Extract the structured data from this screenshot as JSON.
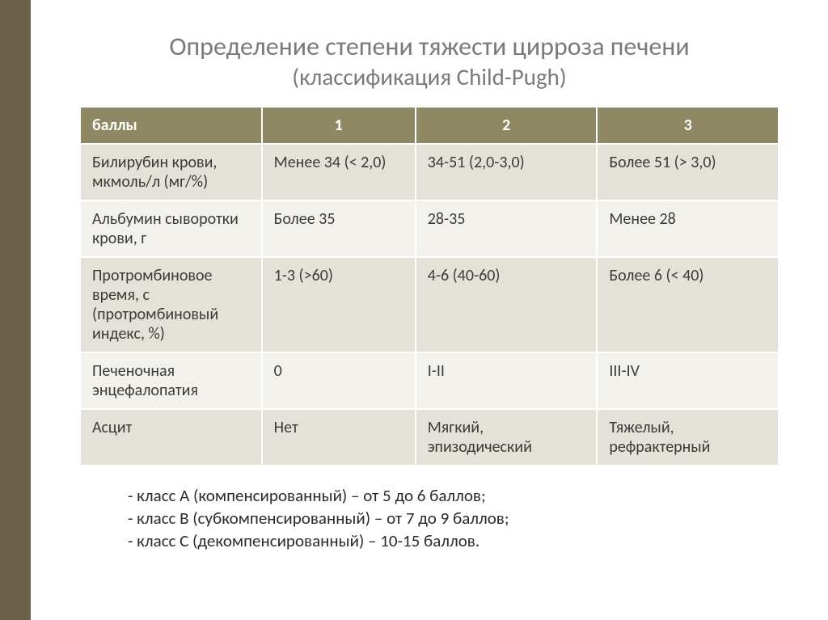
{
  "title": {
    "main": "Определение степени тяжести цирроза печени",
    "sub": "(классификация Child-Pugh)"
  },
  "table": {
    "header_bg": "#8f8865",
    "header_fg": "#ffffff",
    "row_odd_bg": "#e4e2d8",
    "row_even_bg": "#f2f1ec",
    "cell_fg": "#3b3b3b",
    "border_color": "#ffffff",
    "columns": [
      "баллы",
      "1",
      "2",
      "3"
    ],
    "rows": [
      [
        "Билирубин крови, мкмоль/л (мг/%)",
        "Менее 34 (< 2,0)",
        "34-51 (2,0-3,0)",
        "Более 51 (> 3,0)"
      ],
      [
        "Альбумин сыворотки крови, г",
        "Более 35",
        "28-35",
        "Менее 28"
      ],
      [
        "Протромбиновое время, с (протромбиновый индекс, %)",
        "1-3 (>60)",
        "4-6 (40-60)",
        "Более 6 (< 40)"
      ],
      [
        "Печеночная энцефалопатия",
        "0",
        "I-II",
        "III-IV"
      ],
      [
        "Асцит",
        "Нет",
        "Мягкий, эпизодический",
        "Тяжелый, рефрактерный"
      ]
    ]
  },
  "notes": [
    "- класс А (компенсированный) – от 5 до 6 баллов;",
    "- класс В (субкомпенсированный) – от 7 до 9 баллов;",
    "- класс С (декомпенсированный) – 10-15 баллов."
  ],
  "accent_bar_color": "#6b614b",
  "title_color": "#7a7a7a",
  "title_fontsize": 32,
  "subtitle_fontsize": 29,
  "cell_fontsize": 20,
  "notes_fontsize": 21
}
